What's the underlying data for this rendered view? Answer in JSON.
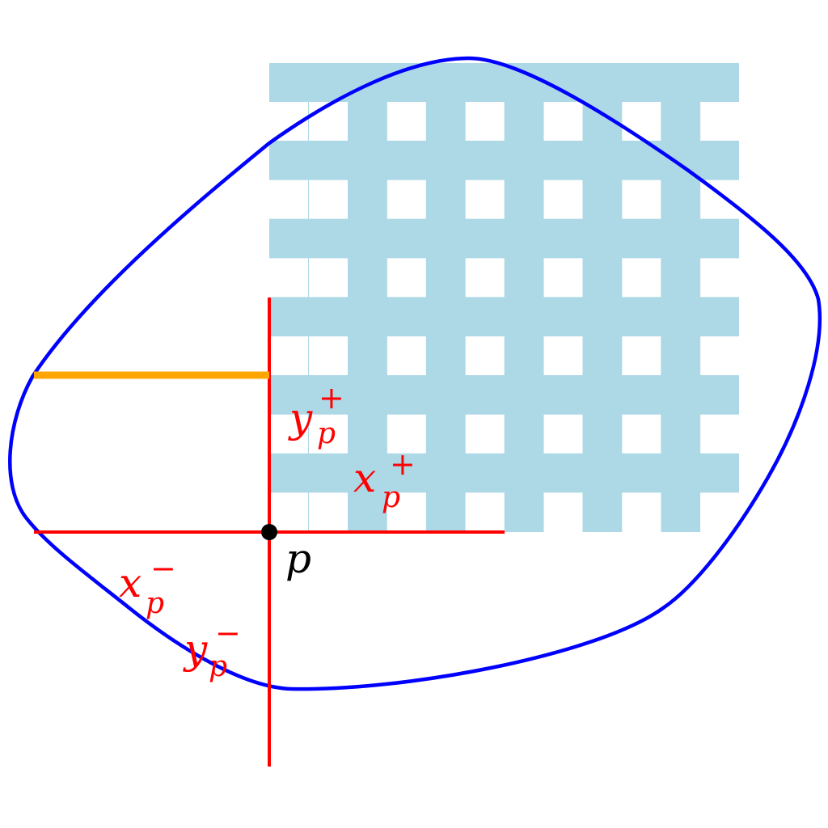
{
  "colors": {
    "background": "#ffffff",
    "grid_fill": "#add8e6",
    "boundary": "#0000ff",
    "axes": "#ff0000",
    "highlight": "#ffa500",
    "point": "#000000"
  },
  "grid": {
    "rows": 6,
    "cols": 6
  },
  "labels": {
    "point": "p",
    "y_plus": {
      "base": "y",
      "sub": "p",
      "sup": "+"
    },
    "x_plus": {
      "base": "x",
      "sub": "p",
      "sup": "+"
    },
    "x_minus": {
      "base": "x",
      "sub": "p",
      "sup": "−"
    },
    "y_minus": {
      "base": "y",
      "sub": "p",
      "sup": "−"
    }
  }
}
